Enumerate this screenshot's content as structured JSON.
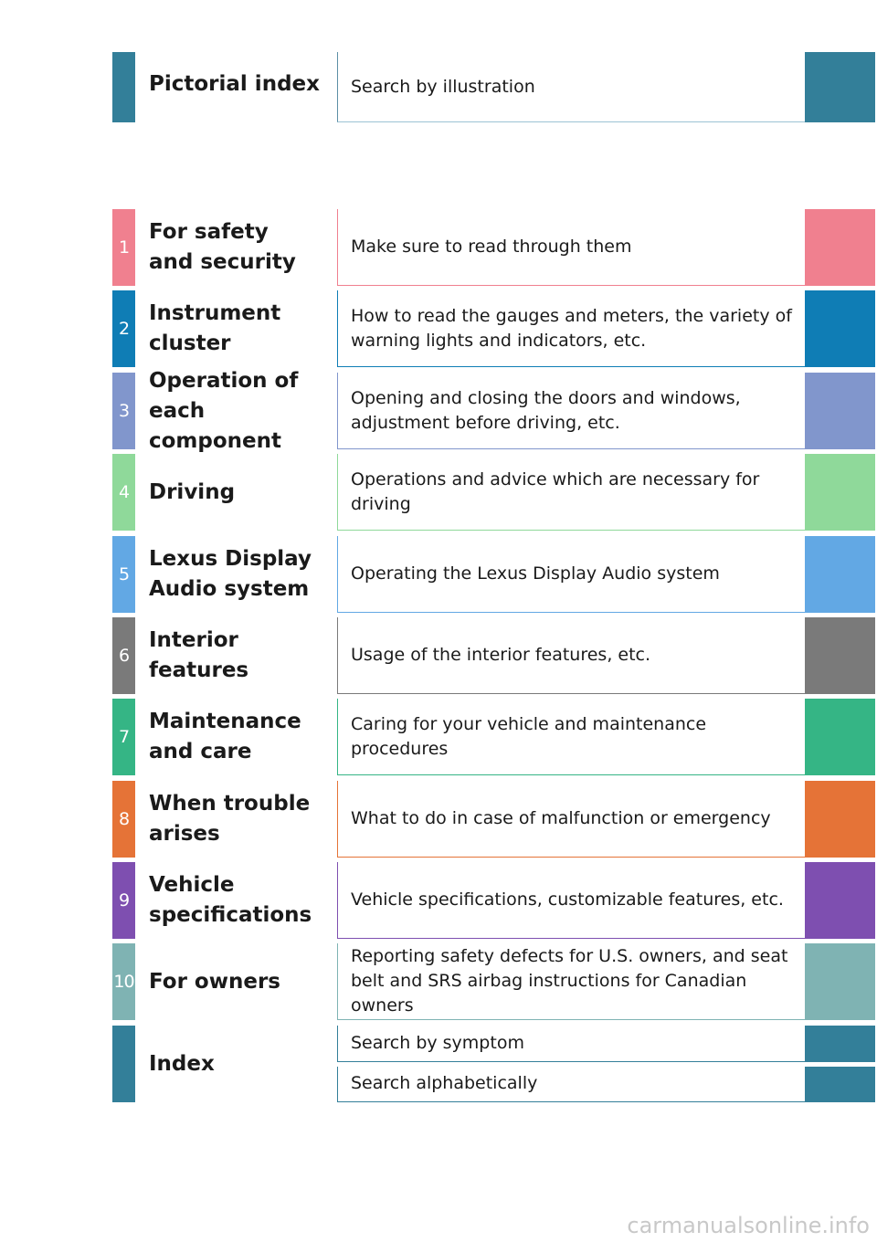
{
  "pictorial": {
    "title": "Pictorial index",
    "description": "Search by illustration"
  },
  "sections": [
    {
      "number": "1",
      "title": "For safety\nand security",
      "descriptions": [
        "Make sure to read through them"
      ]
    },
    {
      "number": "2",
      "title": "Instrument cluster",
      "descriptions": [
        "How to read the gauges and meters, the variety of warning lights and indicators, etc."
      ]
    },
    {
      "number": "3",
      "title": "Operation of each\ncomponent",
      "descriptions": [
        "Opening and closing the doors and windows, adjustment before driving, etc."
      ]
    },
    {
      "number": "4",
      "title": "Driving",
      "descriptions": [
        "Operations and advice which are necessary for driving"
      ]
    },
    {
      "number": "5",
      "title": "Lexus Display\nAudio system",
      "descriptions": [
        "Operating the Lexus Display Audio system"
      ]
    },
    {
      "number": "6",
      "title": "Interior features",
      "descriptions": [
        "Usage of the interior features, etc."
      ]
    },
    {
      "number": "7",
      "title": "Maintenance\nand care",
      "descriptions": [
        "Caring for your vehicle and maintenance procedures"
      ]
    },
    {
      "number": "8",
      "title": "When trouble\narises",
      "descriptions": [
        "What to do in case of malfunction or emergency"
      ]
    },
    {
      "number": "9",
      "title": "Vehicle\nspecifications",
      "descriptions": [
        "Vehicle specifications, customizable features, etc."
      ]
    },
    {
      "number": "10",
      "title": "For owners",
      "descriptions": [
        "Reporting safety defects for U.S. owners, and seat belt and SRS airbag instructions for Canadian owners"
      ]
    },
    {
      "title": "Index",
      "descriptions": [
        "Search by symptom",
        "Search alphabetically"
      ]
    }
  ],
  "watermark": "carmanualsonline.info"
}
